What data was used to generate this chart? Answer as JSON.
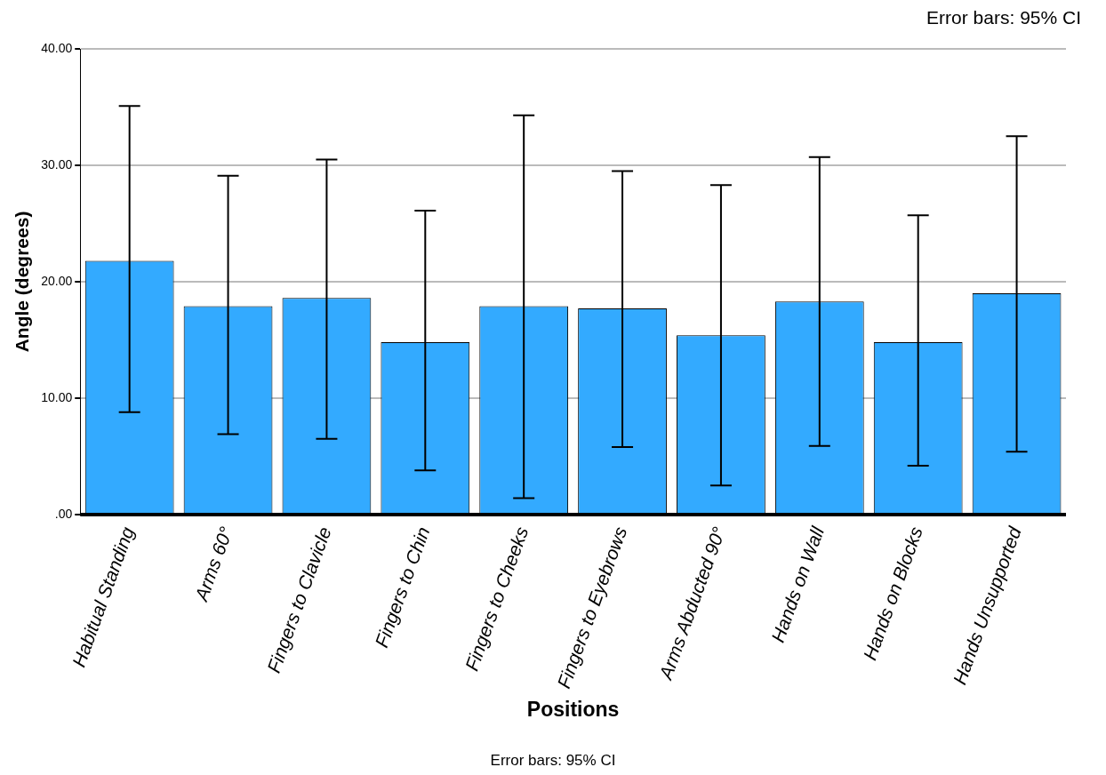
{
  "chart_data": {
    "type": "bar",
    "xlabel": "Positions",
    "ylabel": "Angle (degrees)",
    "categories": [
      "Habitual Standing",
      "Arms 60°",
      "Fingers to Clavicle",
      "Fingers to Chin",
      "Fingers to Cheeks",
      "Fingers to Eyebrows",
      "Arms Abducted 90°",
      "Hands on Wall",
      "Hands on Blocks",
      "Hands Unsupported"
    ],
    "values": [
      21.8,
      17.9,
      18.6,
      14.8,
      17.9,
      17.7,
      15.4,
      18.3,
      14.8,
      19.0
    ],
    "errors": [
      [
        8.8,
        35.1
      ],
      [
        6.9,
        29.1
      ],
      [
        6.5,
        30.5
      ],
      [
        3.8,
        26.1
      ],
      [
        1.4,
        34.3
      ],
      [
        5.8,
        29.5
      ],
      [
        2.5,
        28.3
      ],
      [
        5.9,
        30.7
      ],
      [
        4.2,
        25.7
      ],
      [
        5.4,
        32.5
      ]
    ],
    "color": "#33aaff",
    "ylim": [
      0,
      40
    ],
    "yticks": [
      {
        "value": 0,
        "label": ".00"
      },
      {
        "value": 10,
        "label": "10.00"
      },
      {
        "value": 20,
        "label": "20.00"
      },
      {
        "value": 30,
        "label": "30.00"
      },
      {
        "value": 40,
        "label": "40.00"
      }
    ],
    "grid": "y",
    "annotations": [
      "Error bars: 95% CI",
      "Error bars: 95% CI"
    ]
  }
}
